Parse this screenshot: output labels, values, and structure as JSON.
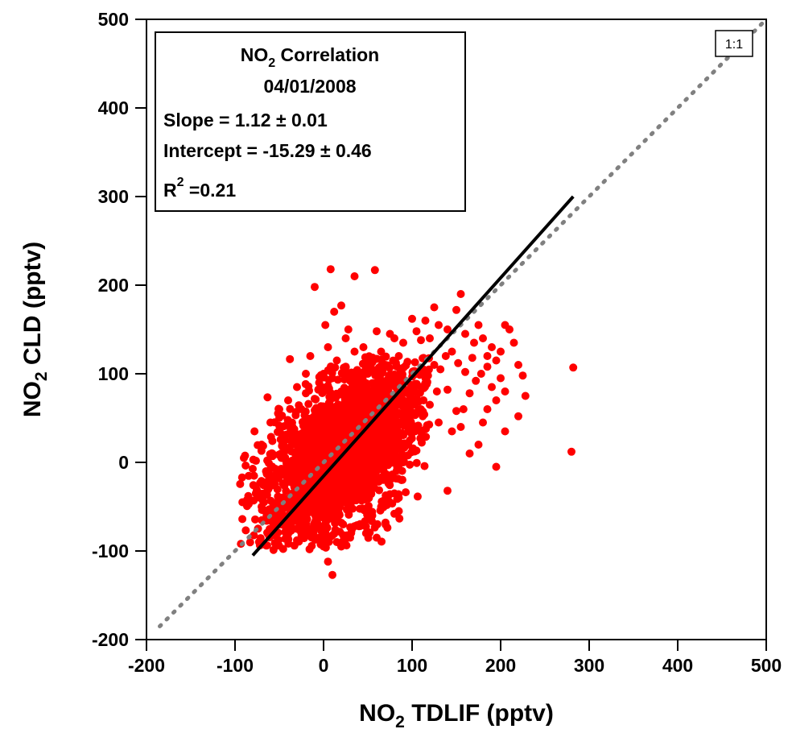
{
  "chart_data": {
    "type": "scatter",
    "x_axis": {
      "title_prefix": "NO",
      "title_sub": "2",
      "title_suffix": " TDLIF (pptv)",
      "range": [
        -200,
        500
      ],
      "ticks": [
        -200,
        -100,
        0,
        100,
        200,
        300,
        400,
        500
      ]
    },
    "y_axis": {
      "title_prefix": "NO",
      "title_sub": "2",
      "title_suffix": " CLD (pptv)",
      "range": [
        -200,
        500
      ],
      "ticks": [
        -200,
        -100,
        0,
        100,
        200,
        300,
        400,
        500
      ]
    },
    "legend_box": {
      "title_prefix": "NO",
      "title_sub": "2",
      "title_suffix": " Correlation",
      "date": "04/01/2008",
      "slope": "Slope = 1.12 ± 0.01",
      "intercept": "Intercept = -15.29 ± 0.46",
      "r2_prefix": "R",
      "r2_sup": "2",
      "r2_suffix": " =0.21",
      "placement": "top-left"
    },
    "reference_line": {
      "label": "1:1",
      "slope": 1,
      "intercept": 0,
      "style": "dotted",
      "color": "#808080"
    },
    "fit_line": {
      "x_start": -80,
      "x_end": 282,
      "y_start": -105,
      "y_end": 300,
      "color": "#000000"
    },
    "series": [
      {
        "color": "#ff0000",
        "points": [
          [
            -90,
            5
          ],
          [
            -92,
            -17
          ],
          [
            -85,
            -38
          ],
          [
            -70,
            -50
          ],
          [
            -60,
            -60
          ],
          [
            -55,
            -75
          ],
          [
            -45,
            -52
          ],
          [
            -38,
            -65
          ],
          [
            -30,
            -88
          ],
          [
            -20,
            -80
          ],
          [
            -10,
            -75
          ],
          [
            0,
            -95
          ],
          [
            5,
            -112
          ],
          [
            10,
            -127
          ],
          [
            15,
            -90
          ],
          [
            22,
            -82
          ],
          [
            30,
            -85
          ],
          [
            40,
            -72
          ],
          [
            55,
            -60
          ],
          [
            60,
            -85
          ],
          [
            70,
            -68
          ],
          [
            80,
            -58
          ],
          [
            85,
            -55
          ],
          [
            -60,
            45
          ],
          [
            -50,
            60
          ],
          [
            -40,
            70
          ],
          [
            -30,
            85
          ],
          [
            -20,
            78
          ],
          [
            -5,
            90
          ],
          [
            0,
            100
          ],
          [
            10,
            95
          ],
          [
            20,
            80
          ],
          [
            25,
            108
          ],
          [
            30,
            92
          ],
          [
            40,
            85
          ],
          [
            50,
            100
          ],
          [
            60,
            90
          ],
          [
            65,
            125
          ],
          [
            70,
            110
          ],
          [
            80,
            140
          ],
          [
            85,
            120
          ],
          [
            -10,
            198
          ],
          [
            2,
            155
          ],
          [
            8,
            218
          ],
          [
            12,
            170
          ],
          [
            20,
            177
          ],
          [
            28,
            150
          ],
          [
            35,
            210
          ],
          [
            58,
            217
          ],
          [
            60,
            148
          ],
          [
            75,
            145
          ],
          [
            90,
            135
          ],
          [
            100,
            162
          ],
          [
            105,
            148
          ],
          [
            110,
            138
          ],
          [
            115,
            160
          ],
          [
            120,
            140
          ],
          [
            125,
            175
          ],
          [
            130,
            155
          ],
          [
            140,
            150
          ],
          [
            150,
            172
          ],
          [
            155,
            190
          ],
          [
            160,
            145
          ],
          [
            170,
            135
          ],
          [
            175,
            155
          ],
          [
            180,
            140
          ],
          [
            185,
            120
          ],
          [
            190,
            130
          ],
          [
            200,
            125
          ],
          [
            205,
            155
          ],
          [
            210,
            150
          ],
          [
            215,
            135
          ],
          [
            220,
            110
          ],
          [
            225,
            98
          ],
          [
            228,
            75
          ],
          [
            220,
            52
          ],
          [
            205,
            80
          ],
          [
            200,
            95
          ],
          [
            195,
            70
          ],
          [
            190,
            85
          ],
          [
            185,
            60
          ],
          [
            180,
            45
          ],
          [
            175,
            20
          ],
          [
            165,
            10
          ],
          [
            155,
            40
          ],
          [
            150,
            58
          ],
          [
            145,
            35
          ],
          [
            140,
            -32
          ],
          [
            130,
            45
          ],
          [
            120,
            65
          ],
          [
            110,
            60
          ],
          [
            100,
            40
          ],
          [
            95,
            20
          ],
          [
            90,
            0
          ],
          [
            88,
            -20
          ],
          [
            85,
            -40
          ],
          [
            80,
            -35
          ],
          [
            75,
            -20
          ],
          [
            110,
            85
          ],
          [
            118,
            98
          ],
          [
            125,
            110
          ],
          [
            132,
            105
          ],
          [
            138,
            120
          ],
          [
            145,
            125
          ],
          [
            152,
            112
          ],
          [
            160,
            102
          ],
          [
            168,
            118
          ],
          [
            172,
            92
          ],
          [
            178,
            100
          ],
          [
            185,
            108
          ],
          [
            195,
            115
          ],
          [
            165,
            78
          ],
          [
            158,
            60
          ],
          [
            140,
            82
          ],
          [
            128,
            80
          ],
          [
            205,
            35
          ],
          [
            195,
            -5
          ],
          [
            282,
            107
          ],
          [
            280,
            12
          ],
          [
            -25,
            60
          ],
          [
            -35,
            40
          ],
          [
            -45,
            30
          ],
          [
            -70,
            20
          ],
          [
            -78,
            35
          ],
          [
            -65,
            -10
          ],
          [
            -55,
            -25
          ],
          [
            -48,
            10
          ],
          [
            -15,
            120
          ],
          [
            5,
            130
          ],
          [
            15,
            115
          ],
          [
            25,
            140
          ],
          [
            45,
            130
          ],
          [
            55,
            118
          ],
          [
            35,
            125
          ],
          [
            -20,
            100
          ],
          [
            -40,
            -80
          ],
          [
            -25,
            -70
          ],
          [
            -5,
            -85
          ],
          [
            20,
            -95
          ],
          [
            35,
            -72
          ],
          [
            48,
            -80
          ],
          [
            65,
            -50
          ],
          [
            72,
            -40
          ]
        ]
      }
    ],
    "dense_core": {
      "center": [
        20,
        10
      ],
      "sigma_along": 48,
      "sigma_across": 22,
      "angle_deg": 35,
      "count": 2600
    }
  }
}
